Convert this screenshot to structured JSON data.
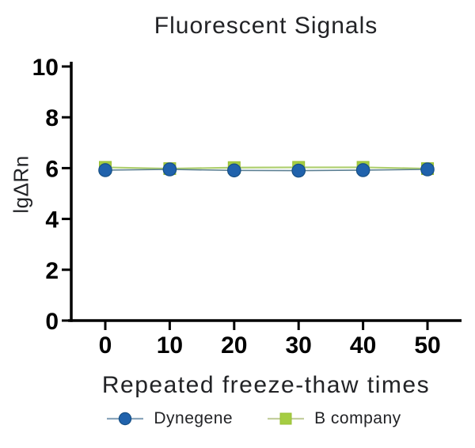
{
  "chart_data": {
    "type": "line",
    "title": "Fluorescent Signals",
    "xlabel": "Repeated freeze-thaw times",
    "ylabel": "lgΔRn",
    "x": [
      0,
      10,
      20,
      30,
      40,
      50
    ],
    "xticks": [
      0,
      10,
      20,
      30,
      40,
      50
    ],
    "yticks": [
      0,
      2,
      4,
      6,
      8,
      10
    ],
    "xlim": [
      -5,
      55
    ],
    "ylim": [
      0,
      10
    ],
    "grid": false,
    "legend_position": "bottom",
    "axis_color": "#000000",
    "series": [
      {
        "name": "Dynegene",
        "marker": "circle",
        "marker_fill": "#2062ac",
        "marker_stroke": "#174f85",
        "line_color": "#5d8094",
        "legend_line_color": "#8aa5bb",
        "values": [
          5.92,
          5.95,
          5.91,
          5.9,
          5.92,
          5.95
        ]
      },
      {
        "name": "B company",
        "marker": "square",
        "marker_fill": "#a5cd43",
        "marker_stroke": "#99bf35",
        "line_color": "#aecf6e",
        "legend_line_color": "#c3cf9e",
        "values": [
          6.03,
          5.98,
          6.02,
          6.03,
          6.03,
          5.98
        ]
      }
    ]
  }
}
